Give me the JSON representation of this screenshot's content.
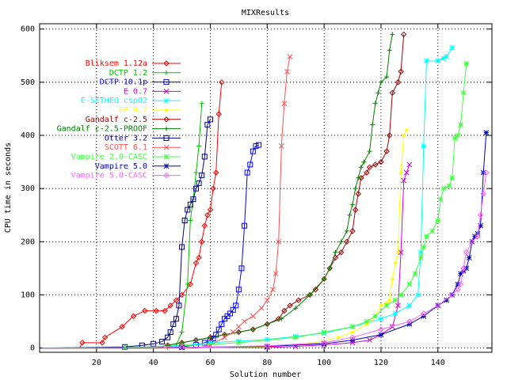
{
  "chart_data": {
    "type": "line",
    "title": "MIXResults",
    "xlabel": "Solution number",
    "ylabel": "CPU time in seconds",
    "xlim": [
      0,
      159
    ],
    "ylim": [
      -8,
      610
    ],
    "xticks": [
      20,
      40,
      60,
      80,
      100,
      120,
      140
    ],
    "yticks": [
      0,
      100,
      200,
      300,
      400,
      500,
      600
    ],
    "grid": true,
    "legend": "top-left, inside",
    "series": [
      {
        "name": "Bliksem 1.12a",
        "color": "#ff0000",
        "marker": "diamond",
        "points": [
          [
            1,
            0
          ],
          [
            14,
            0
          ],
          [
            15,
            10
          ],
          [
            22,
            10
          ],
          [
            23,
            20
          ],
          [
            29,
            40
          ],
          [
            33,
            60
          ],
          [
            37,
            70
          ],
          [
            41,
            70
          ],
          [
            44,
            70
          ],
          [
            46,
            80
          ],
          [
            48,
            90
          ],
          [
            50,
            100
          ],
          [
            53,
            120
          ],
          [
            55,
            160
          ],
          [
            56,
            170
          ],
          [
            57,
            200
          ],
          [
            58,
            230
          ],
          [
            59,
            250
          ],
          [
            60,
            260
          ],
          [
            61,
            300
          ],
          [
            62,
            330
          ],
          [
            63,
            440
          ],
          [
            64,
            500
          ]
        ]
      },
      {
        "name": "DCTP 1.2",
        "color": "#00c000",
        "marker": "vline",
        "points": [
          [
            1,
            0
          ],
          [
            40,
            0
          ],
          [
            45,
            1
          ],
          [
            48,
            5
          ],
          [
            50,
            30
          ],
          [
            52,
            120
          ],
          [
            53,
            240
          ],
          [
            54,
            280
          ],
          [
            55,
            330
          ],
          [
            56,
            380
          ],
          [
            57,
            460
          ]
        ]
      },
      {
        "name": "DCTP 10.1p",
        "color": "#0000ff",
        "marker": "square",
        "points": [
          [
            1,
            0
          ],
          [
            40,
            0
          ],
          [
            50,
            2
          ],
          [
            55,
            6
          ],
          [
            58,
            10
          ],
          [
            60,
            15
          ],
          [
            61,
            18
          ],
          [
            62,
            25
          ],
          [
            63,
            35
          ],
          [
            64,
            45
          ],
          [
            65,
            55
          ],
          [
            66,
            60
          ],
          [
            67,
            65
          ],
          [
            68,
            72
          ],
          [
            69,
            80
          ],
          [
            70,
            110
          ],
          [
            71,
            150
          ],
          [
            72,
            230
          ],
          [
            73,
            330
          ],
          [
            74,
            345
          ],
          [
            75,
            370
          ],
          [
            76,
            380
          ],
          [
            77,
            382
          ]
        ]
      },
      {
        "name": "E 0.7",
        "color": "#d000d0",
        "marker": "cross",
        "points": [
          [
            1,
            0
          ],
          [
            60,
            0
          ],
          [
            80,
            1
          ],
          [
            90,
            3
          ],
          [
            100,
            6
          ],
          [
            110,
            10
          ],
          [
            116,
            15
          ],
          [
            120,
            25
          ],
          [
            124,
            40
          ],
          [
            126,
            80
          ],
          [
            127,
            180
          ],
          [
            128,
            315
          ],
          [
            129,
            330
          ],
          [
            130,
            345
          ]
        ]
      },
      {
        "name": "E-SETHEO csp02",
        "color": "#00ffff",
        "marker": "star",
        "points": [
          [
            1,
            0
          ],
          [
            30,
            1
          ],
          [
            50,
            5
          ],
          [
            60,
            10
          ],
          [
            70,
            13
          ],
          [
            80,
            16
          ],
          [
            90,
            22
          ],
          [
            100,
            28
          ],
          [
            110,
            40
          ],
          [
            120,
            55
          ],
          [
            125,
            65
          ],
          [
            130,
            80
          ],
          [
            133,
            100
          ],
          [
            134,
            180
          ],
          [
            135,
            380
          ],
          [
            136,
            540
          ],
          [
            140,
            540
          ],
          [
            142,
            545
          ],
          [
            143,
            548
          ],
          [
            145,
            565
          ]
        ]
      },
      {
        "name": "EP 0.7",
        "color": "#ffff00",
        "marker": "dot",
        "points": [
          [
            1,
            0
          ],
          [
            60,
            0
          ],
          [
            80,
            2
          ],
          [
            95,
            8
          ],
          [
            105,
            20
          ],
          [
            110,
            30
          ],
          [
            115,
            45
          ],
          [
            118,
            60
          ],
          [
            120,
            80
          ],
          [
            122,
            85
          ],
          [
            123,
            90
          ],
          [
            124,
            130
          ],
          [
            125,
            160
          ],
          [
            126,
            180
          ],
          [
            127,
            330
          ],
          [
            128,
            400
          ],
          [
            129,
            410
          ]
        ]
      },
      {
        "name": "Gandalf c-2.5",
        "color": "#a00000",
        "marker": "diamond",
        "points": [
          [
            1,
            0
          ],
          [
            42,
            0
          ],
          [
            45,
            5
          ],
          [
            50,
            10
          ],
          [
            55,
            15
          ],
          [
            60,
            20
          ],
          [
            65,
            25
          ],
          [
            70,
            30
          ],
          [
            75,
            35
          ],
          [
            80,
            45
          ],
          [
            84,
            55
          ],
          [
            86,
            70
          ],
          [
            88,
            80
          ],
          [
            91,
            90
          ],
          [
            95,
            100
          ],
          [
            97,
            110
          ],
          [
            100,
            130
          ],
          [
            102,
            150
          ],
          [
            104,
            170
          ],
          [
            106,
            180
          ],
          [
            108,
            200
          ],
          [
            110,
            220
          ],
          [
            111,
            260
          ],
          [
            112,
            290
          ],
          [
            113,
            320
          ],
          [
            115,
            330
          ],
          [
            116,
            340
          ],
          [
            118,
            345
          ],
          [
            120,
            350
          ],
          [
            122,
            370
          ],
          [
            123,
            400
          ],
          [
            124,
            480
          ],
          [
            126,
            500
          ],
          [
            127,
            520
          ],
          [
            128,
            590
          ]
        ]
      },
      {
        "name": "Gandalf c-2.5-PROOF",
        "color": "#008000",
        "marker": "vline",
        "points": [
          [
            1,
            0
          ],
          [
            40,
            0
          ],
          [
            45,
            5
          ],
          [
            50,
            10
          ],
          [
            55,
            15
          ],
          [
            60,
            20
          ],
          [
            65,
            25
          ],
          [
            70,
            30
          ],
          [
            75,
            35
          ],
          [
            80,
            45
          ],
          [
            85,
            55
          ],
          [
            90,
            75
          ],
          [
            95,
            100
          ],
          [
            100,
            130
          ],
          [
            102,
            150
          ],
          [
            104,
            180
          ],
          [
            106,
            200
          ],
          [
            108,
            220
          ],
          [
            109,
            250
          ],
          [
            110,
            270
          ],
          [
            111,
            300
          ],
          [
            112,
            320
          ],
          [
            113,
            340
          ],
          [
            114,
            350
          ],
          [
            116,
            370
          ],
          [
            117,
            420
          ],
          [
            118,
            460
          ],
          [
            119,
            480
          ],
          [
            120,
            500
          ],
          [
            122,
            510
          ],
          [
            123,
            560
          ],
          [
            124,
            590
          ]
        ]
      },
      {
        "name": "Otter 3.2",
        "color": "#000080",
        "marker": "square",
        "points": [
          [
            1,
            0
          ],
          [
            30,
            2
          ],
          [
            36,
            5
          ],
          [
            40,
            8
          ],
          [
            43,
            12
          ],
          [
            45,
            20
          ],
          [
            46,
            30
          ],
          [
            47,
            45
          ],
          [
            48,
            55
          ],
          [
            49,
            80
          ],
          [
            50,
            190
          ],
          [
            51,
            240
          ],
          [
            52,
            260
          ],
          [
            53,
            270
          ],
          [
            54,
            280
          ],
          [
            55,
            300
          ],
          [
            56,
            310
          ],
          [
            57,
            325
          ],
          [
            58,
            360
          ],
          [
            59,
            420
          ],
          [
            60,
            430
          ]
        ]
      },
      {
        "name": "SCOTT 6.1",
        "color": "#ff5050",
        "marker": "cross",
        "points": [
          [
            1,
            0
          ],
          [
            55,
            0
          ],
          [
            60,
            5
          ],
          [
            65,
            20
          ],
          [
            68,
            30
          ],
          [
            70,
            40
          ],
          [
            72,
            50
          ],
          [
            75,
            60
          ],
          [
            78,
            75
          ],
          [
            80,
            90
          ],
          [
            82,
            110
          ],
          [
            83,
            140
          ],
          [
            84,
            200
          ],
          [
            85,
            380
          ],
          [
            86,
            460
          ],
          [
            87,
            520
          ],
          [
            88,
            548
          ]
        ]
      },
      {
        "name": "Vampire 2.0-CASC",
        "color": "#40ff40",
        "marker": "star",
        "points": [
          [
            1,
            0
          ],
          [
            30,
            1
          ],
          [
            50,
            4
          ],
          [
            70,
            10
          ],
          [
            90,
            20
          ],
          [
            100,
            30
          ],
          [
            110,
            40
          ],
          [
            115,
            50
          ],
          [
            118,
            60
          ],
          [
            122,
            80
          ],
          [
            125,
            90
          ],
          [
            127,
            100
          ],
          [
            130,
            120
          ],
          [
            132,
            140
          ],
          [
            134,
            170
          ],
          [
            135,
            190
          ],
          [
            136,
            210
          ],
          [
            138,
            220
          ],
          [
            140,
            240
          ],
          [
            141,
            280
          ],
          [
            142,
            300
          ],
          [
            144,
            305
          ],
          [
            145,
            320
          ],
          [
            146,
            395
          ],
          [
            147,
            400
          ],
          [
            148,
            420
          ],
          [
            149,
            480
          ],
          [
            150,
            535
          ]
        ]
      },
      {
        "name": "Vampire 5.0",
        "color": "#0000c0",
        "marker": "star",
        "points": [
          [
            1,
            0
          ],
          [
            50,
            1
          ],
          [
            80,
            3
          ],
          [
            100,
            8
          ],
          [
            110,
            15
          ],
          [
            120,
            25
          ],
          [
            130,
            45
          ],
          [
            135,
            60
          ],
          [
            140,
            80
          ],
          [
            143,
            90
          ],
          [
            145,
            100
          ],
          [
            147,
            120
          ],
          [
            148,
            140
          ],
          [
            149,
            145
          ],
          [
            150,
            150
          ],
          [
            151,
            170
          ],
          [
            152,
            200
          ],
          [
            153,
            210
          ],
          [
            154,
            215
          ],
          [
            155,
            230
          ],
          [
            156,
            330
          ],
          [
            157,
            405
          ]
        ]
      },
      {
        "name": "Vampire 5.0-CASC",
        "color": "#ff60ff",
        "marker": "diamond",
        "points": [
          [
            1,
            0
          ],
          [
            50,
            1
          ],
          [
            80,
            4
          ],
          [
            100,
            10
          ],
          [
            110,
            20
          ],
          [
            120,
            35
          ],
          [
            130,
            50
          ],
          [
            135,
            65
          ],
          [
            140,
            80
          ],
          [
            145,
            100
          ],
          [
            147,
            110
          ],
          [
            148,
            120
          ],
          [
            149,
            150
          ],
          [
            150,
            180
          ],
          [
            152,
            200
          ],
          [
            154,
            210
          ],
          [
            155,
            250
          ],
          [
            156,
            290
          ],
          [
            157,
            330
          ]
        ]
      }
    ]
  }
}
